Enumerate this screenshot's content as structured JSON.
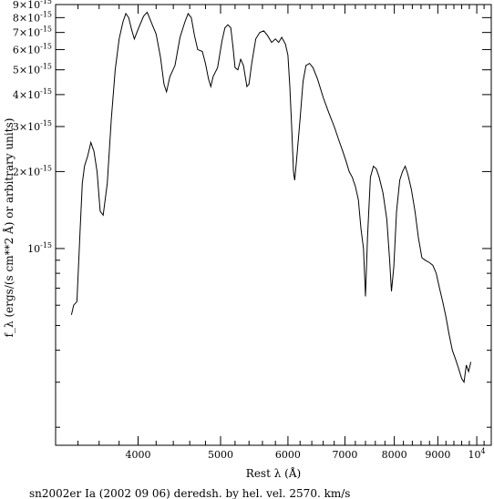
{
  "chart_data": {
    "type": "line",
    "xlabel": "Rest λ (Å)",
    "ylabel": "f_λ (ergs/(s cm**2 Å) or arbitrary units)",
    "caption": "sn2002er Ia (2002 09 06) deredsh. by hel. vel.  2570. km/s",
    "x_scale": "log",
    "y_scale": "log",
    "xlim": [
      3200,
      10400
    ],
    "ylim": [
      1.7e-16,
      9e-15
    ],
    "x_ticks": [
      {
        "value": 4000,
        "label": "4000"
      },
      {
        "value": 5000,
        "label": "5000"
      },
      {
        "value": 6000,
        "label": "6000"
      },
      {
        "value": 7000,
        "label": "7000"
      },
      {
        "value": 8000,
        "label": "8000"
      },
      {
        "value": 9000,
        "label": "9000"
      },
      {
        "value": 10000,
        "label": "10^4"
      }
    ],
    "y_ticks": [
      {
        "value": 9e-15,
        "label": "9×10^-15"
      },
      {
        "value": 8e-15,
        "label": "8×10^-15"
      },
      {
        "value": 7e-15,
        "label": "7×10^-15"
      },
      {
        "value": 6e-15,
        "label": "6×10^-15"
      },
      {
        "value": 5e-15,
        "label": "5×10^-15"
      },
      {
        "value": 4e-15,
        "label": "4×10^-15"
      },
      {
        "value": 3e-15,
        "label": "3×10^-15"
      },
      {
        "value": 2e-15,
        "label": "2×10^-15"
      },
      {
        "value": 1e-15,
        "label": "10^-15"
      }
    ],
    "series": [
      {
        "color": "#000000",
        "points": [
          [
            3340,
            5.5e-16
          ],
          [
            3360,
            6e-16
          ],
          [
            3390,
            6.2e-16
          ],
          [
            3420,
            1.2e-15
          ],
          [
            3440,
            1.8e-15
          ],
          [
            3460,
            2.1e-15
          ],
          [
            3490,
            2.3e-15
          ],
          [
            3520,
            2.6e-15
          ],
          [
            3550,
            2.4e-15
          ],
          [
            3580,
            2e-15
          ],
          [
            3610,
            1.4e-15
          ],
          [
            3640,
            1.35e-15
          ],
          [
            3680,
            1.8e-15
          ],
          [
            3720,
            3.2e-15
          ],
          [
            3760,
            5e-15
          ],
          [
            3800,
            6.6e-15
          ],
          [
            3840,
            7.7e-15
          ],
          [
            3870,
            8.3e-15
          ],
          [
            3900,
            8e-15
          ],
          [
            3930,
            7.2e-15
          ],
          [
            3960,
            6.6e-15
          ],
          [
            4000,
            7.2e-15
          ],
          [
            4060,
            8.1e-15
          ],
          [
            4100,
            8.4e-15
          ],
          [
            4150,
            7.6e-15
          ],
          [
            4200,
            6.9e-15
          ],
          [
            4250,
            5.6e-15
          ],
          [
            4290,
            4.4e-15
          ],
          [
            4320,
            4.1e-15
          ],
          [
            4360,
            4.7e-15
          ],
          [
            4420,
            5.2e-15
          ],
          [
            4480,
            6.7e-15
          ],
          [
            4540,
            7.7e-15
          ],
          [
            4580,
            8.3e-15
          ],
          [
            4620,
            8e-15
          ],
          [
            4660,
            6.8e-15
          ],
          [
            4700,
            6e-15
          ],
          [
            4760,
            5.9e-15
          ],
          [
            4800,
            5.3e-15
          ],
          [
            4840,
            4.6e-15
          ],
          [
            4870,
            4.3e-15
          ],
          [
            4900,
            4.7e-15
          ],
          [
            4960,
            5.1e-15
          ],
          [
            5020,
            6.5e-15
          ],
          [
            5060,
            7.3e-15
          ],
          [
            5100,
            7.5e-15
          ],
          [
            5140,
            7.3e-15
          ],
          [
            5170,
            6.2e-15
          ],
          [
            5200,
            5.1e-15
          ],
          [
            5240,
            5e-15
          ],
          [
            5280,
            5.5e-15
          ],
          [
            5320,
            5.2e-15
          ],
          [
            5370,
            4.3e-15
          ],
          [
            5400,
            4.4e-15
          ],
          [
            5440,
            5.3e-15
          ],
          [
            5500,
            6.6e-15
          ],
          [
            5560,
            7e-15
          ],
          [
            5620,
            7.1e-15
          ],
          [
            5680,
            6.8e-15
          ],
          [
            5740,
            6.4e-15
          ],
          [
            5800,
            6.6e-15
          ],
          [
            5850,
            6.4e-15
          ],
          [
            5900,
            6.7e-15
          ],
          [
            5960,
            6.3e-15
          ],
          [
            6000,
            5.7e-15
          ],
          [
            6030,
            4.3e-15
          ],
          [
            6060,
            3e-15
          ],
          [
            6090,
            2e-15
          ],
          [
            6110,
            1.85e-15
          ],
          [
            6140,
            2.2e-15
          ],
          [
            6200,
            3.2e-15
          ],
          [
            6250,
            4.5e-15
          ],
          [
            6300,
            5.2e-15
          ],
          [
            6360,
            5.3e-15
          ],
          [
            6420,
            5.1e-15
          ],
          [
            6500,
            4.6e-15
          ],
          [
            6600,
            3.9e-15
          ],
          [
            6700,
            3.4e-15
          ],
          [
            6800,
            3e-15
          ],
          [
            6900,
            2.6e-15
          ],
          [
            6960,
            2.4e-15
          ],
          [
            7020,
            2.2e-15
          ],
          [
            7080,
            2e-15
          ],
          [
            7140,
            1.9e-15
          ],
          [
            7200,
            1.75e-15
          ],
          [
            7260,
            1.55e-15
          ],
          [
            7310,
            1.2e-15
          ],
          [
            7360,
            1e-15
          ],
          [
            7400,
            6.5e-16
          ],
          [
            7440,
            1.1e-15
          ],
          [
            7500,
            1.9e-15
          ],
          [
            7560,
            2.1e-15
          ],
          [
            7620,
            2.05e-15
          ],
          [
            7680,
            1.9e-15
          ],
          [
            7760,
            1.65e-15
          ],
          [
            7840,
            1.3e-15
          ],
          [
            7900,
            9e-16
          ],
          [
            7940,
            6.8e-16
          ],
          [
            7990,
            8.5e-16
          ],
          [
            8050,
            1.4e-15
          ],
          [
            8120,
            1.85e-15
          ],
          [
            8180,
            2e-15
          ],
          [
            8240,
            2.1e-15
          ],
          [
            8300,
            1.95e-15
          ],
          [
            8380,
            1.7e-15
          ],
          [
            8460,
            1.4e-15
          ],
          [
            8540,
            1.1e-15
          ],
          [
            8620,
            9.2e-16
          ],
          [
            8700,
            9e-16
          ],
          [
            8800,
            8.8e-16
          ],
          [
            8880,
            8.6e-16
          ],
          [
            8960,
            8e-16
          ],
          [
            9040,
            7e-16
          ],
          [
            9120,
            6.2e-16
          ],
          [
            9200,
            5.4e-16
          ],
          [
            9280,
            4.6e-16
          ],
          [
            9360,
            4e-16
          ],
          [
            9440,
            3.7e-16
          ],
          [
            9520,
            3.4e-16
          ],
          [
            9600,
            3.1e-16
          ],
          [
            9660,
            3e-16
          ],
          [
            9720,
            3.5e-16
          ],
          [
            9780,
            3.3e-16
          ],
          [
            9840,
            3.6e-16
          ]
        ]
      }
    ]
  }
}
